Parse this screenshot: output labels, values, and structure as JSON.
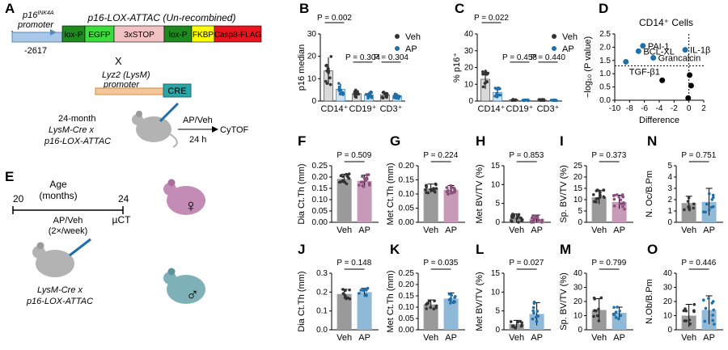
{
  "panel_letters": {
    "A": "A",
    "B": "B",
    "C": "C",
    "D": "D",
    "E": "E",
    "F": "F",
    "G": "G",
    "H": "H",
    "I": "I",
    "J": "J",
    "K": "K",
    "L": "L",
    "M": "M",
    "N": "N",
    "O": "O"
  },
  "construct": {
    "p16_promoter_line1": "p16",
    "p16_promoter_sup": "INK4A",
    "p16_promoter_line2": "promoter",
    "allele_title": "p16-LOX-ATTAC (Un-recombined)",
    "segments": [
      {
        "label": "lox-P",
        "color": "#1e8a1e",
        "text_color": "#000000"
      },
      {
        "label": "EGFP",
        "color": "#3ddc3d",
        "text_color": "#000000"
      },
      {
        "label": "3xSTOP",
        "color": "#f2c2c2",
        "text_color": "#000000"
      },
      {
        "label": "lox-P",
        "color": "#1e8a1e",
        "text_color": "#000000"
      },
      {
        "label": "FKBP",
        "color": "#ffff00",
        "text_color": "#000000"
      },
      {
        "label": "Casp8-FLAG",
        "color": "#e8141e",
        "text_color": "#000000"
      }
    ],
    "position_label": "-2617",
    "cross_symbol": "X",
    "lyz2_line1": "Lyz2 (LysM)",
    "lyz2_line2": "promoter",
    "cre_label": "CRE",
    "mouse_age": "24-month",
    "mouse_strain_1": "LysM-Cre x",
    "mouse_strain_2": "p16-LOX-ATTAC",
    "treatment": "AP/Veh",
    "cytof": "CyTOF",
    "time": "24 h"
  },
  "schematic_e": {
    "age_title_1": "Age",
    "age_title_2": "(months)",
    "start_age": "20",
    "end_age": "24",
    "treatment": "AP/Veh",
    "frequency": "(2×/week)",
    "endpoint": "µCT",
    "strain_1": "LysM-Cre x",
    "strain_2": "p16-LOX-ATTAC",
    "female_symbol": "♀",
    "male_symbol": "♂"
  },
  "colors": {
    "veh": "#333333",
    "ap": "#1f6fa8",
    "veh_bar_gray": "#9a9a9a",
    "ap_bar_female": "#c79ab8",
    "ap_bar_male": "#8fb9d6",
    "mouse_gray": "#b3b3b3",
    "mouse_female": "#c38cb6",
    "mouse_male": "#7fb2b8"
  },
  "chart_data": [
    {
      "id": "B",
      "type": "bar",
      "ylabel": "p16 median",
      "ylim": [
        0,
        30
      ],
      "yticks": [
        0,
        10,
        20,
        30
      ],
      "categories": [
        "CD14⁺",
        "CD19⁺",
        "CD3⁺"
      ],
      "series": [
        {
          "name": "Veh",
          "values": [
            13.5,
            3.3,
            2.8
          ]
        },
        {
          "name": "AP",
          "values": [
            5.3,
            2.8,
            2.4
          ]
        }
      ],
      "pvalues": [
        "P = 0.002",
        "P = 0.304",
        "P = 0.304"
      ],
      "legend": [
        "Veh",
        "AP"
      ]
    },
    {
      "id": "C",
      "type": "bar",
      "ylabel": "% p16⁺",
      "ylim": [
        0,
        40
      ],
      "yticks": [
        0,
        10,
        20,
        30,
        40
      ],
      "categories": [
        "CD14⁺",
        "CD19⁺",
        "CD3⁺"
      ],
      "series": [
        {
          "name": "Veh",
          "values": [
            13.0,
            0.8,
            0.6
          ]
        },
        {
          "name": "AP",
          "values": [
            5.2,
            0.5,
            0.4
          ]
        }
      ],
      "pvalues": [
        "P = 0.022",
        "P = 0.458",
        "P = 0.440"
      ],
      "legend": [
        "Veh",
        "AP"
      ]
    },
    {
      "id": "D",
      "type": "scatter",
      "title": "CD14⁺ Cells",
      "xlabel": "Difference",
      "ylabel": "−log₁₀ (P value)",
      "xlim": [
        -10,
        2
      ],
      "ylim": [
        0,
        2.5
      ],
      "xticks": [
        -10,
        -8,
        -6,
        -4,
        -2,
        0,
        2
      ],
      "yticks": [
        0,
        0.5,
        1.0,
        1.5,
        2.0,
        2.5
      ],
      "points": [
        {
          "x": -6.2,
          "y": 2.05,
          "label": "PAI-1",
          "highlight": true
        },
        {
          "x": -6.8,
          "y": 1.85,
          "label": "BCL-XL",
          "highlight": true
        },
        {
          "x": -4.8,
          "y": 1.6,
          "label": "Grancalcin",
          "highlight": true
        },
        {
          "x": -0.5,
          "y": 1.9,
          "label": "IL-1β",
          "highlight": true
        },
        {
          "x": -8.5,
          "y": 1.45,
          "label": "TGF-β1",
          "highlight": true
        },
        {
          "x": -3.6,
          "y": 0.75,
          "label": "",
          "highlight": false
        },
        {
          "x": 0.1,
          "y": 0.95,
          "label": "",
          "highlight": false
        },
        {
          "x": 0.3,
          "y": 0.55,
          "label": "",
          "highlight": false
        },
        {
          "x": -0.1,
          "y": 0.08,
          "label": "",
          "highlight": false
        }
      ],
      "threshold_y": 1.3
    },
    {
      "id": "F",
      "type": "bar",
      "ylabel": "Dia Ct.Th (mm)",
      "ylim": [
        0,
        0.25
      ],
      "yticks": [
        0.0,
        0.05,
        0.1,
        0.15,
        0.2,
        0.25
      ],
      "yfmt": 2,
      "categories": [
        "Veh",
        "AP"
      ],
      "values": [
        0.192,
        0.183
      ],
      "errors": [
        0.02,
        0.025
      ],
      "pvalue": "P = 0.509",
      "sex": "female"
    },
    {
      "id": "G",
      "type": "bar",
      "ylabel": "Met Ct.Th (mm)",
      "ylim": [
        0,
        0.2
      ],
      "yticks": [
        0.0,
        0.05,
        0.1,
        0.15,
        0.2
      ],
      "yfmt": 2,
      "categories": [
        "Veh",
        "AP"
      ],
      "values": [
        0.12,
        0.115
      ],
      "errors": [
        0.015,
        0.015
      ],
      "pvalue": "P = 0.224",
      "sex": "female"
    },
    {
      "id": "H",
      "type": "bar",
      "ylabel": "Met BV/TV (%)",
      "ylim": [
        0,
        15
      ],
      "yticks": [
        0,
        5,
        10,
        15
      ],
      "yfmt": 0,
      "categories": [
        "Veh",
        "AP"
      ],
      "values": [
        1.0,
        0.9
      ],
      "errors": [
        1.2,
        1.0
      ],
      "pvalue": "P = 0.853",
      "sex": "female"
    },
    {
      "id": "I",
      "type": "bar",
      "ylabel": "Sp. BV/TV (%)",
      "ylim": [
        0,
        25
      ],
      "yticks": [
        0,
        5,
        10,
        15,
        20,
        25
      ],
      "yfmt": 0,
      "categories": [
        "Veh",
        "AP"
      ],
      "values": [
        11.0,
        9.0
      ],
      "errors": [
        3.0,
        3.0
      ],
      "pvalue": "P = 0.373",
      "sex": "female"
    },
    {
      "id": "N",
      "type": "bar",
      "ylabel": "N. Oc/B.Pm",
      "ylim": [
        0,
        5
      ],
      "yticks": [
        0,
        1,
        2,
        3,
        4,
        5
      ],
      "yfmt": 0,
      "categories": [
        "Veh",
        "AP"
      ],
      "values": [
        1.7,
        1.8
      ],
      "errors": [
        0.6,
        1.2
      ],
      "pvalue": "P = 0.751",
      "sex": "male"
    },
    {
      "id": "J",
      "type": "bar",
      "ylabel": "Dia Ct.Th (mm)",
      "ylim": [
        0,
        0.3
      ],
      "yticks": [
        0.0,
        0.1,
        0.2,
        0.3
      ],
      "yfmt": 1,
      "categories": [
        "Veh",
        "AP"
      ],
      "values": [
        0.19,
        0.2
      ],
      "errors": [
        0.025,
        0.02
      ],
      "pvalue": "P = 0.148",
      "sex": "male"
    },
    {
      "id": "K",
      "type": "bar",
      "ylabel": "Met Ct.Th (mm)",
      "ylim": [
        0,
        0.25
      ],
      "yticks": [
        0.0,
        0.05,
        0.1,
        0.15,
        0.2,
        0.25
      ],
      "yfmt": 2,
      "categories": [
        "Veh",
        "AP"
      ],
      "values": [
        0.112,
        0.138
      ],
      "errors": [
        0.02,
        0.025
      ],
      "pvalue": "P = 0.035",
      "sex": "male"
    },
    {
      "id": "L",
      "type": "bar",
      "ylabel": "Met BV/TV (%)",
      "ylim": [
        0,
        15
      ],
      "yticks": [
        0,
        5,
        10,
        15
      ],
      "yfmt": 0,
      "categories": [
        "Veh",
        "AP"
      ],
      "values": [
        1.5,
        4.2
      ],
      "errors": [
        1.0,
        3.0
      ],
      "pvalue": "P = 0.027",
      "sex": "male"
    },
    {
      "id": "M",
      "type": "bar",
      "ylabel": "Sp. BV/TV (%)",
      "ylim": [
        0,
        40
      ],
      "yticks": [
        0,
        10,
        20,
        30,
        40
      ],
      "yfmt": 0,
      "categories": [
        "Veh",
        "AP"
      ],
      "values": [
        14.0,
        12.0
      ],
      "errors": [
        8.0,
        4.0
      ],
      "pvalue": "P = 0.799",
      "sex": "male"
    },
    {
      "id": "O",
      "type": "bar",
      "ylabel": "N.Ob/B.Pm",
      "ylim": [
        0,
        40
      ],
      "yticks": [
        0,
        10,
        20,
        30,
        40
      ],
      "yfmt": 0,
      "categories": [
        "Veh",
        "AP"
      ],
      "values": [
        10.0,
        14.0
      ],
      "errors": [
        8.0,
        10.0
      ],
      "pvalue": "P = 0.446",
      "sex": "male"
    }
  ]
}
